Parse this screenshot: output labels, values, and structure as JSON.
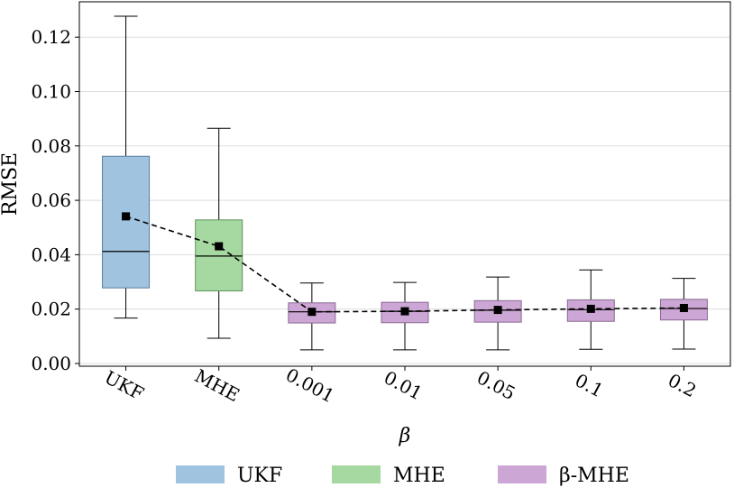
{
  "chart_data": {
    "type": "box",
    "xlabel": "β",
    "ylabel": "RMSE",
    "ylim": [
      -0.001,
      0.133
    ],
    "yticks": [
      0.0,
      0.02,
      0.04,
      0.06,
      0.08,
      0.1,
      0.12
    ],
    "ytick_labels": [
      "0.00",
      "0.02",
      "0.04",
      "0.06",
      "0.08",
      "0.10",
      "0.12"
    ],
    "grid": true,
    "categories": [
      "UKF",
      "MHE",
      "0.001",
      "0.01",
      "0.05",
      "0.1",
      "0.2"
    ],
    "boxes": [
      {
        "label": "UKF",
        "group": "UKF",
        "whislo": 0.0167,
        "q1": 0.0278,
        "median": 0.0412,
        "q3": 0.0762,
        "whishi": 0.1277,
        "mean": 0.0541
      },
      {
        "label": "MHE",
        "group": "MHE",
        "whislo": 0.0093,
        "q1": 0.0267,
        "median": 0.0395,
        "q3": 0.0528,
        "whishi": 0.0865,
        "mean": 0.0431
      },
      {
        "label": "0.001",
        "group": "β-MHE",
        "whislo": 0.005,
        "q1": 0.0149,
        "median": 0.019,
        "q3": 0.0223,
        "whishi": 0.0296,
        "mean": 0.019
      },
      {
        "label": "0.01",
        "group": "β-MHE",
        "whislo": 0.005,
        "q1": 0.015,
        "median": 0.0192,
        "q3": 0.0225,
        "whishi": 0.0298,
        "mean": 0.0192
      },
      {
        "label": "0.05",
        "group": "β-MHE",
        "whislo": 0.005,
        "q1": 0.0152,
        "median": 0.0196,
        "q3": 0.0231,
        "whishi": 0.0318,
        "mean": 0.0197
      },
      {
        "label": "0.1",
        "group": "β-MHE",
        "whislo": 0.0052,
        "q1": 0.0155,
        "median": 0.0198,
        "q3": 0.0234,
        "whishi": 0.0344,
        "mean": 0.0201
      },
      {
        "label": "0.2",
        "group": "β-MHE",
        "whislo": 0.0053,
        "q1": 0.016,
        "median": 0.0202,
        "q3": 0.0236,
        "whishi": 0.0313,
        "mean": 0.0204
      }
    ],
    "legend": [
      {
        "label": "UKF",
        "color": "#a0c3e0"
      },
      {
        "label": "MHE",
        "color": "#a6d8a1"
      },
      {
        "label": "β-MHE",
        "color": "#cca6d4"
      }
    ],
    "legend_position": "bottom"
  },
  "colors": {
    "UKF": "#a0c3e0",
    "MHE": "#a6d8a1",
    "β-MHE": "#cca6d4",
    "box_edge_UKF": "#5a7e9e",
    "box_edge_MHE": "#5f935a",
    "box_edge_bMHE": "#8a6a93",
    "grid": "#dddddd"
  }
}
